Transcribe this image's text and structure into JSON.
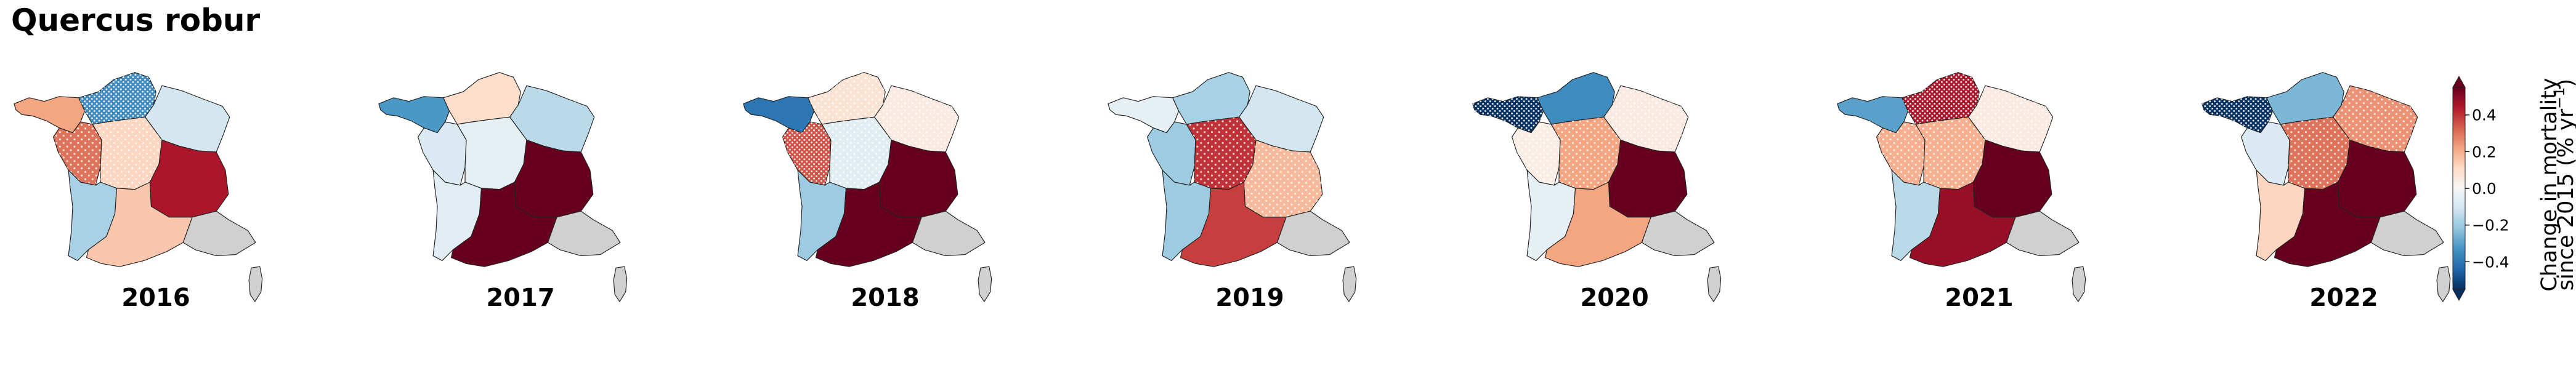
{
  "title": "Quercus robur",
  "colors": {
    "background": "#ffffff",
    "outline": "#222222",
    "no_data": "#d0d0d0",
    "hatch": "#ffffff"
  },
  "colorbar": {
    "label_line1": "Change in mortality",
    "label_line2": "since 2015 (% yr",
    "label_sup": "−1",
    "label_close": ")",
    "min": -0.55,
    "max": 0.55,
    "ticks": [
      {
        "value": 0.4,
        "label": "0.4"
      },
      {
        "value": 0.2,
        "label": "0.2"
      },
      {
        "value": 0.0,
        "label": "0.0"
      },
      {
        "value": -0.2,
        "label": "−0.2"
      },
      {
        "value": -0.4,
        "label": "−0.4"
      }
    ],
    "extend": "both",
    "colormap": "RdBu_r"
  },
  "regions": [
    "NW",
    "N",
    "NE",
    "W",
    "C",
    "E",
    "SW",
    "SE",
    "S"
  ],
  "maps": [
    {
      "year": "2016",
      "values": {
        "NW": 0.22,
        "N": -0.35,
        "NE": -0.1,
        "W": 0.3,
        "C": 0.12,
        "E": 0.45,
        "SW": -0.18,
        "SE": null,
        "S": 0.15
      },
      "hatched": [
        "N",
        "W",
        "C"
      ],
      "dense": [
        "N"
      ]
    },
    {
      "year": "2017",
      "values": {
        "NW": -0.32,
        "N": 0.1,
        "NE": -0.15,
        "W": -0.08,
        "C": -0.05,
        "E": 0.55,
        "SW": -0.06,
        "SE": null,
        "S": 0.55
      },
      "hatched": [],
      "dense": []
    },
    {
      "year": "2018",
      "values": {
        "NW": -0.4,
        "N": 0.08,
        "NE": 0.05,
        "W": 0.35,
        "C": -0.06,
        "E": 0.55,
        "SW": -0.2,
        "SE": null,
        "S": 0.55
      },
      "hatched": [
        "N",
        "NE",
        "W",
        "C"
      ],
      "dense": [
        "W"
      ]
    },
    {
      "year": "2019",
      "values": {
        "NW": -0.05,
        "N": -0.18,
        "NE": -0.1,
        "W": -0.2,
        "C": 0.4,
        "E": 0.18,
        "SW": -0.2,
        "SE": null,
        "S": 0.38
      },
      "hatched": [
        "C",
        "E"
      ],
      "dense": []
    },
    {
      "year": "2020",
      "values": {
        "NW": -0.55,
        "N": -0.35,
        "NE": 0.05,
        "W": 0.04,
        "C": 0.22,
        "E": 0.55,
        "SW": -0.05,
        "SE": null,
        "S": 0.22
      },
      "hatched": [
        "NE",
        "C",
        "W"
      ],
      "dense": [
        "NW"
      ]
    },
    {
      "year": "2021",
      "values": {
        "NW": -0.3,
        "N": 0.45,
        "NE": 0.05,
        "W": 0.2,
        "C": 0.2,
        "E": 0.55,
        "SW": -0.15,
        "SE": null,
        "S": 0.48
      },
      "hatched": [
        "N",
        "NE",
        "W",
        "C"
      ],
      "dense": [
        "N"
      ]
    },
    {
      "year": "2022",
      "values": {
        "NW": -0.55,
        "N": -0.25,
        "NE": 0.25,
        "W": -0.08,
        "C": 0.3,
        "E": 0.55,
        "SW": 0.12,
        "SE": null,
        "S": 0.55
      },
      "hatched": [
        "NE",
        "C"
      ],
      "dense": [
        "NW"
      ]
    }
  ]
}
